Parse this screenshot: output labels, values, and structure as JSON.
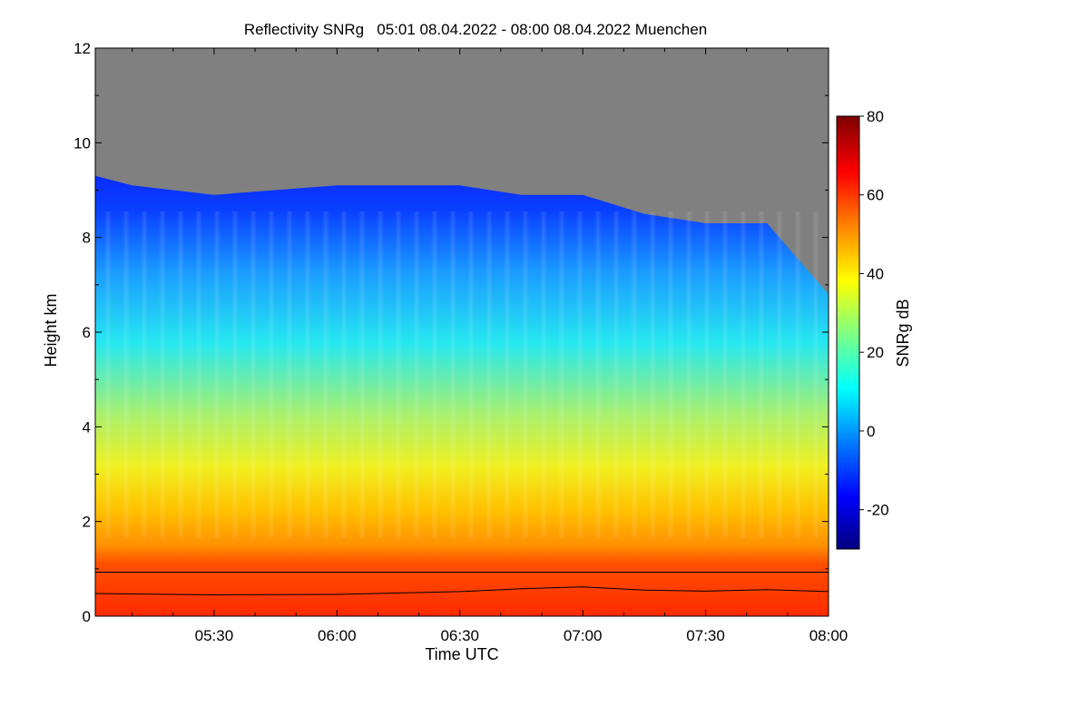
{
  "chart_data": {
    "type": "heatmap",
    "title": "Reflectivity SNRg   05:01 08.04.2022 - 08:00 08.04.2022 Muenchen",
    "xlabel": "Time UTC",
    "ylabel": "Height km",
    "xlim": [
      "05:01",
      "08:00"
    ],
    "ylim": [
      0,
      12
    ],
    "x_ticks": [
      "05:30",
      "06:00",
      "06:30",
      "07:00",
      "07:30",
      "08:00"
    ],
    "y_ticks": [
      "0",
      "2",
      "4",
      "6",
      "8",
      "10",
      "12"
    ],
    "colorbar": {
      "label": "SNRg dB",
      "range": [
        -30,
        80
      ],
      "ticks": [
        "-20",
        "0",
        "20",
        "40",
        "60",
        "80"
      ],
      "colormap": [
        "#00007f",
        "#0000ff",
        "#0080ff",
        "#00ffff",
        "#80ff80",
        "#ffff00",
        "#ff8000",
        "#ff0000",
        "#7f0000"
      ]
    },
    "missing_color": "#808080",
    "cloud_top_km": [
      {
        "time": "05:01",
        "height": 9.3
      },
      {
        "time": "05:10",
        "height": 9.1
      },
      {
        "time": "05:30",
        "height": 8.9
      },
      {
        "time": "06:00",
        "height": 9.1
      },
      {
        "time": "06:30",
        "height": 9.1
      },
      {
        "time": "06:45",
        "height": 8.9
      },
      {
        "time": "07:00",
        "height": 8.9
      },
      {
        "time": "07:15",
        "height": 8.5
      },
      {
        "time": "07:30",
        "height": 8.3
      },
      {
        "time": "07:45",
        "height": 8.3
      },
      {
        "time": "08:00",
        "height": 6.8
      }
    ],
    "reference_line_km": 0.93,
    "boundary_layer_km": [
      {
        "time": "05:01",
        "height": 0.48
      },
      {
        "time": "05:30",
        "height": 0.45
      },
      {
        "time": "06:00",
        "height": 0.46
      },
      {
        "time": "06:30",
        "height": 0.52
      },
      {
        "time": "06:45",
        "height": 0.58
      },
      {
        "time": "07:00",
        "height": 0.62
      },
      {
        "time": "07:15",
        "height": 0.55
      },
      {
        "time": "07:30",
        "height": 0.53
      },
      {
        "time": "07:45",
        "height": 0.56
      },
      {
        "time": "08:00",
        "height": 0.52
      }
    ]
  }
}
